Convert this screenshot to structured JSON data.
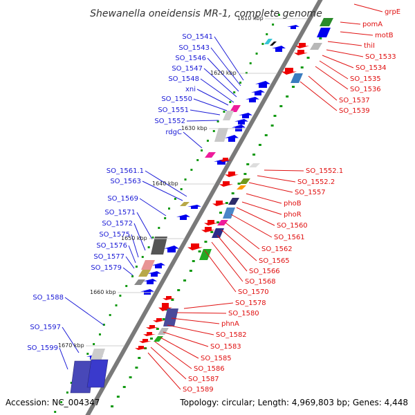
{
  "title": "Shewanella oneidensis MR-1, complete genome",
  "accession": "Accession: NC_004347",
  "topology": "Topology: circular; Length: 4,969,803 bp; Genes: 4,448",
  "colors": {
    "backbone": "#777777",
    "minus_strand_gene": "#0000ee",
    "plus_strand_gene": "#ee0000",
    "left_labels": "#1a1ad6",
    "right_labels": "#e01010",
    "gc_ticks": "#119911"
  },
  "scale_labels": [
    "1610 kbp",
    "1620 kbp",
    "1630 kbp",
    "1640 kbp",
    "1650 kbp",
    "1660 kbp",
    "1670 kbp"
  ],
  "left_genes": [
    "SO_1541",
    "SO_1543",
    "SO_1546",
    "SO_1547",
    "SO_1548",
    "xni",
    "SO_1550",
    "SO_1551",
    "SO_1552",
    "rdgC",
    "SO_1561.1",
    "SO_1563",
    "SO_1569",
    "SO_1571",
    "SO_1572",
    "SO_1575",
    "SO_1576",
    "SO_1577",
    "SO_1579",
    "SO_1588",
    "SO_1597",
    "SO_1599"
  ],
  "right_genes": [
    "grpE",
    "pomA",
    "motB",
    "thiI",
    "SO_1533",
    "SO_1534",
    "SO_1535",
    "SO_1536",
    "SO_1537",
    "SO_1539",
    "SO_1552.1",
    "SO_1552.2",
    "SO_1557",
    "phoB",
    "phoR",
    "SO_1560",
    "SO_1561",
    "SO_1562",
    "SO_1565",
    "SO_1566",
    "SO_1568",
    "SO_1570",
    "SO_1578",
    "SO_1580",
    "phnA",
    "SO_1582",
    "SO_1583",
    "SO_1585",
    "SO_1586",
    "SO_1587",
    "SO_1589"
  ]
}
